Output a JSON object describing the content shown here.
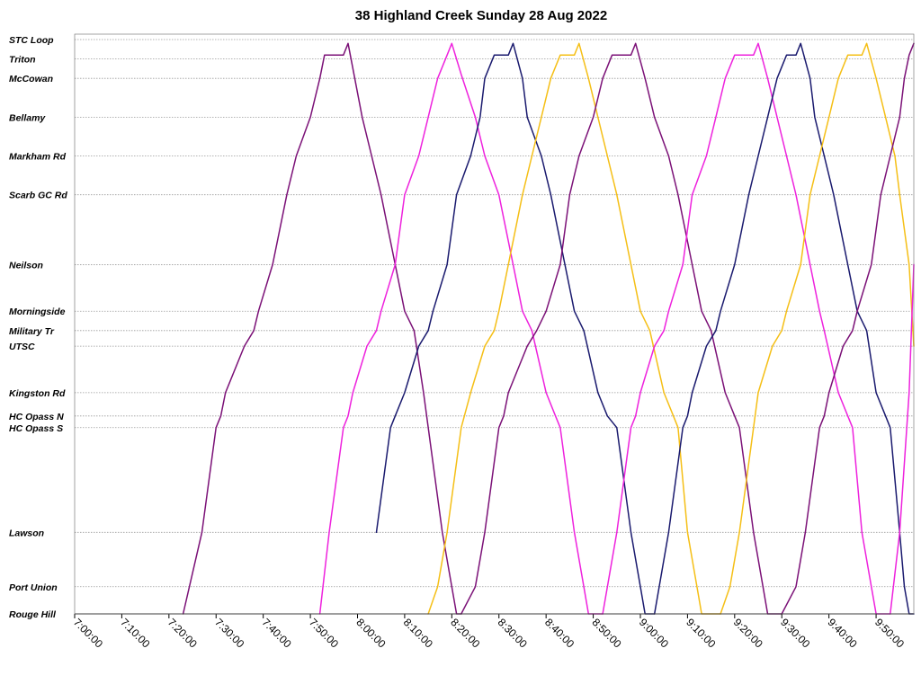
{
  "chart_data": {
    "type": "line",
    "title": "38 Highland Creek Sunday 28 Aug 2022",
    "xlabel": "",
    "ylabel": "",
    "x_axis": {
      "min": "7:00:00",
      "max": "9:58:00",
      "tick_labels": [
        "7:00:00",
        "7:10:00",
        "7:20:00",
        "7:30:00",
        "7:40:00",
        "7:50:00",
        "8:00:00",
        "8:10:00",
        "8:20:00",
        "8:30:00",
        "8:40:00",
        "8:50:00",
        "9:00:00",
        "9:10:00",
        "9:20:00",
        "9:30:00",
        "9:40:00",
        "9:50:00"
      ]
    },
    "stops": [
      {
        "name": "STC Loop",
        "position": 20.0
      },
      {
        "name": "Triton",
        "position": 19.5
      },
      {
        "name": "McCowan",
        "position": 19.0
      },
      {
        "name": "Bellamy",
        "position": 18.0
      },
      {
        "name": "Markham Rd",
        "position": 17.0
      },
      {
        "name": "Scarb GC Rd",
        "position": 16.0
      },
      {
        "name": "Neilson",
        "position": 14.2
      },
      {
        "name": "Morningside",
        "position": 13.0
      },
      {
        "name": "Military Tr",
        "position": 12.5
      },
      {
        "name": "UTSC",
        "position": 12.1
      },
      {
        "name": "Kingston Rd",
        "position": 10.9
      },
      {
        "name": "HC Opass N",
        "position": 10.3
      },
      {
        "name": "HC Opass S",
        "position": 10.0
      },
      {
        "name": "Lawson",
        "position": 7.3
      },
      {
        "name": "Port Union",
        "position": 5.9
      },
      {
        "name": "Rouge Hill",
        "position": 5.2
      }
    ],
    "grid": true,
    "legend": "none",
    "series": [
      {
        "color": "#7B1177",
        "points": [
          [
            "7:23:00",
            5.2
          ],
          [
            "7:27:00",
            7.3
          ],
          [
            "7:30:00",
            10.0
          ],
          [
            "7:31:00",
            10.3
          ],
          [
            "7:32:00",
            10.9
          ],
          [
            "7:36:00",
            12.1
          ],
          [
            "7:38:00",
            12.5
          ],
          [
            "7:39:00",
            13.0
          ],
          [
            "7:42:00",
            14.2
          ],
          [
            "7:45:00",
            16.0
          ],
          [
            "7:47:00",
            17.0
          ],
          [
            "7:50:00",
            18.0
          ],
          [
            "7:52:00",
            19.0
          ],
          [
            "7:53:00",
            19.6
          ],
          [
            "7:57:00",
            19.6
          ],
          [
            "7:58:00",
            19.9
          ],
          [
            "8:01:00",
            18.0
          ],
          [
            "8:03:00",
            17.0
          ],
          [
            "8:05:00",
            16.0
          ],
          [
            "8:08:00",
            14.2
          ],
          [
            "8:10:00",
            13.0
          ],
          [
            "8:12:00",
            12.5
          ],
          [
            "8:14:00",
            10.9
          ],
          [
            "8:18:00",
            7.3
          ],
          [
            "8:20:00",
            5.9
          ],
          [
            "8:21:00",
            5.2
          ],
          [
            "8:22:00",
            5.2
          ]
        ]
      },
      {
        "color": "#EE22DD",
        "points": [
          [
            "7:52:00",
            5.2
          ],
          [
            "7:54:00",
            7.3
          ],
          [
            "7:57:00",
            10.0
          ],
          [
            "7:58:00",
            10.3
          ],
          [
            "7:59:00",
            10.9
          ],
          [
            "8:02:00",
            12.1
          ],
          [
            "8:04:00",
            12.5
          ],
          [
            "8:05:00",
            13.0
          ],
          [
            "8:08:00",
            14.2
          ],
          [
            "8:10:00",
            16.0
          ],
          [
            "8:13:00",
            17.0
          ],
          [
            "8:15:00",
            18.0
          ],
          [
            "8:17:00",
            19.0
          ],
          [
            "8:19:00",
            19.6
          ],
          [
            "8:20:00",
            19.9
          ],
          [
            "8:22:00",
            19.1
          ],
          [
            "8:25:00",
            18.0
          ],
          [
            "8:27:00",
            17.0
          ],
          [
            "8:30:00",
            16.0
          ],
          [
            "8:33:00",
            14.2
          ],
          [
            "8:35:00",
            13.0
          ],
          [
            "8:37:00",
            12.5
          ],
          [
            "8:40:00",
            10.9
          ],
          [
            "8:42:00",
            10.3
          ],
          [
            "8:43:00",
            10.0
          ],
          [
            "8:46:00",
            7.3
          ],
          [
            "8:48:00",
            5.9
          ],
          [
            "8:49:00",
            5.2
          ],
          [
            "8:52:00",
            5.2
          ]
        ]
      },
      {
        "color": "#1A1A6E",
        "points": [
          [
            "8:04:00",
            7.3
          ],
          [
            "8:07:00",
            10.0
          ],
          [
            "8:08:00",
            10.3
          ],
          [
            "8:10:00",
            10.9
          ],
          [
            "8:13:00",
            12.1
          ],
          [
            "8:15:00",
            12.5
          ],
          [
            "8:16:00",
            13.0
          ],
          [
            "8:19:00",
            14.2
          ],
          [
            "8:21:00",
            16.0
          ],
          [
            "8:24:00",
            17.0
          ],
          [
            "8:26:00",
            18.0
          ],
          [
            "8:27:00",
            19.0
          ],
          [
            "8:29:00",
            19.6
          ],
          [
            "8:32:00",
            19.6
          ],
          [
            "8:33:00",
            19.9
          ],
          [
            "8:35:00",
            19.0
          ],
          [
            "8:36:00",
            18.0
          ],
          [
            "8:39:00",
            17.0
          ],
          [
            "8:41:00",
            16.0
          ],
          [
            "8:44:00",
            14.2
          ],
          [
            "8:46:00",
            13.0
          ],
          [
            "8:48:00",
            12.5
          ],
          [
            "8:51:00",
            10.9
          ],
          [
            "8:53:00",
            10.3
          ],
          [
            "8:55:00",
            10.0
          ],
          [
            "8:58:00",
            7.3
          ],
          [
            "9:00:00",
            5.9
          ],
          [
            "9:01:00",
            5.2
          ],
          [
            "9:03:00",
            5.2
          ]
        ]
      },
      {
        "color": "#F5BF16",
        "points": [
          [
            "8:15:00",
            5.2
          ],
          [
            "8:17:00",
            5.9
          ],
          [
            "8:19:00",
            7.3
          ],
          [
            "8:22:00",
            10.0
          ],
          [
            "8:24:00",
            10.9
          ],
          [
            "8:27:00",
            12.1
          ],
          [
            "8:29:00",
            12.5
          ],
          [
            "8:30:00",
            13.0
          ],
          [
            "8:32:00",
            14.2
          ],
          [
            "8:35:00",
            16.0
          ],
          [
            "8:37:00",
            17.0
          ],
          [
            "8:39:00",
            18.0
          ],
          [
            "8:41:00",
            19.0
          ],
          [
            "8:43:00",
            19.6
          ],
          [
            "8:46:00",
            19.6
          ],
          [
            "8:47:00",
            19.9
          ],
          [
            "8:49:00",
            19.0
          ],
          [
            "8:51:00",
            18.0
          ],
          [
            "8:53:00",
            17.0
          ],
          [
            "8:55:00",
            16.0
          ],
          [
            "8:58:00",
            14.2
          ],
          [
            "9:00:00",
            13.0
          ],
          [
            "9:02:00",
            12.5
          ],
          [
            "9:05:00",
            10.9
          ],
          [
            "9:07:00",
            10.3
          ],
          [
            "9:08:00",
            10.0
          ],
          [
            "9:10:00",
            7.3
          ],
          [
            "9:12:00",
            5.9
          ],
          [
            "9:13:00",
            5.2
          ],
          [
            "9:17:00",
            5.2
          ]
        ]
      },
      {
        "color": "#7B1177",
        "points": [
          [
            "8:22:00",
            5.2
          ],
          [
            "8:25:00",
            5.9
          ],
          [
            "8:27:00",
            7.3
          ],
          [
            "8:30:00",
            10.0
          ],
          [
            "8:31:00",
            10.3
          ],
          [
            "8:32:00",
            10.9
          ],
          [
            "8:36:00",
            12.1
          ],
          [
            "8:38:00",
            12.5
          ],
          [
            "8:40:00",
            13.0
          ],
          [
            "8:43:00",
            14.2
          ],
          [
            "8:45:00",
            16.0
          ],
          [
            "8:47:00",
            17.0
          ],
          [
            "8:50:00",
            18.0
          ],
          [
            "8:52:00",
            19.0
          ],
          [
            "8:54:00",
            19.6
          ],
          [
            "8:58:00",
            19.6
          ],
          [
            "8:59:00",
            19.9
          ],
          [
            "9:01:00",
            19.0
          ],
          [
            "9:03:00",
            18.0
          ],
          [
            "9:06:00",
            17.0
          ],
          [
            "9:08:00",
            16.0
          ],
          [
            "9:11:00",
            14.2
          ],
          [
            "9:13:00",
            13.0
          ],
          [
            "9:15:00",
            12.5
          ],
          [
            "9:18:00",
            10.9
          ],
          [
            "9:20:00",
            10.3
          ],
          [
            "9:21:00",
            10.0
          ],
          [
            "9:24:00",
            7.3
          ],
          [
            "9:26:00",
            5.9
          ],
          [
            "9:27:00",
            5.2
          ],
          [
            "9:30:00",
            5.2
          ]
        ]
      },
      {
        "color": "#EE22DD",
        "points": [
          [
            "8:52:00",
            5.2
          ],
          [
            "8:55:00",
            7.3
          ],
          [
            "8:58:00",
            10.0
          ],
          [
            "8:59:00",
            10.3
          ],
          [
            "9:00:00",
            10.9
          ],
          [
            "9:03:00",
            12.1
          ],
          [
            "9:05:00",
            12.5
          ],
          [
            "9:06:00",
            13.0
          ],
          [
            "9:09:00",
            14.2
          ],
          [
            "9:11:00",
            16.0
          ],
          [
            "9:14:00",
            17.0
          ],
          [
            "9:16:00",
            18.0
          ],
          [
            "9:18:00",
            19.0
          ],
          [
            "9:20:00",
            19.6
          ],
          [
            "9:24:00",
            19.6
          ],
          [
            "9:25:00",
            19.9
          ],
          [
            "9:27:00",
            19.0
          ],
          [
            "9:29:00",
            18.0
          ],
          [
            "9:31:00",
            17.0
          ],
          [
            "9:33:00",
            16.0
          ],
          [
            "9:36:00",
            14.2
          ],
          [
            "9:38:00",
            13.0
          ],
          [
            "9:39:00",
            12.5
          ],
          [
            "9:42:00",
            10.9
          ],
          [
            "9:44:00",
            10.3
          ],
          [
            "9:45:00",
            10.0
          ],
          [
            "9:47:00",
            7.3
          ],
          [
            "9:49:00",
            5.9
          ],
          [
            "9:50:00",
            5.2
          ],
          [
            "9:53:00",
            5.2
          ]
        ]
      },
      {
        "color": "#1A1A6E",
        "points": [
          [
            "9:03:00",
            5.2
          ],
          [
            "9:06:00",
            7.3
          ],
          [
            "9:09:00",
            10.0
          ],
          [
            "9:10:00",
            10.3
          ],
          [
            "9:11:00",
            10.9
          ],
          [
            "9:14:00",
            12.1
          ],
          [
            "9:16:00",
            12.5
          ],
          [
            "9:17:00",
            13.0
          ],
          [
            "9:20:00",
            14.2
          ],
          [
            "9:23:00",
            16.0
          ],
          [
            "9:25:00",
            17.0
          ],
          [
            "9:27:00",
            18.0
          ],
          [
            "9:29:00",
            19.0
          ],
          [
            "9:31:00",
            19.6
          ],
          [
            "9:33:00",
            19.6
          ],
          [
            "9:34:00",
            19.9
          ],
          [
            "9:36:00",
            19.0
          ],
          [
            "9:37:00",
            18.0
          ],
          [
            "9:39:00",
            17.0
          ],
          [
            "9:41:00",
            16.0
          ],
          [
            "9:44:00",
            14.2
          ],
          [
            "9:46:00",
            13.0
          ],
          [
            "9:48:00",
            12.5
          ],
          [
            "9:50:00",
            10.9
          ],
          [
            "9:52:00",
            10.3
          ],
          [
            "9:53:00",
            10.0
          ],
          [
            "9:55:00",
            7.3
          ],
          [
            "9:56:00",
            5.9
          ],
          [
            "9:57:00",
            5.2
          ],
          [
            "9:58:00",
            5.2
          ]
        ]
      },
      {
        "color": "#F5BF16",
        "points": [
          [
            "9:17:00",
            5.2
          ],
          [
            "9:19:00",
            5.9
          ],
          [
            "9:21:00",
            7.3
          ],
          [
            "9:24:00",
            10.0
          ],
          [
            "9:25:00",
            10.9
          ],
          [
            "9:28:00",
            12.1
          ],
          [
            "9:30:00",
            12.5
          ],
          [
            "9:31:00",
            13.0
          ],
          [
            "9:34:00",
            14.2
          ],
          [
            "9:36:00",
            16.0
          ],
          [
            "9:38:00",
            17.0
          ],
          [
            "9:40:00",
            18.0
          ],
          [
            "9:42:00",
            19.0
          ],
          [
            "9:44:00",
            19.6
          ],
          [
            "9:47:00",
            19.6
          ],
          [
            "9:48:00",
            19.9
          ],
          [
            "9:50:00",
            19.0
          ],
          [
            "9:52:00",
            18.0
          ],
          [
            "9:54:00",
            17.0
          ],
          [
            "9:55:00",
            16.0
          ],
          [
            "9:57:00",
            14.2
          ],
          [
            "9:58:00",
            12.1
          ]
        ]
      },
      {
        "color": "#7B1177",
        "points": [
          [
            "9:30:00",
            5.2
          ],
          [
            "9:33:00",
            5.9
          ],
          [
            "9:35:00",
            7.3
          ],
          [
            "9:38:00",
            10.0
          ],
          [
            "9:39:00",
            10.3
          ],
          [
            "9:40:00",
            10.9
          ],
          [
            "9:43:00",
            12.1
          ],
          [
            "9:45:00",
            12.5
          ],
          [
            "9:46:00",
            13.0
          ],
          [
            "9:49:00",
            14.2
          ],
          [
            "9:51:00",
            16.0
          ],
          [
            "9:53:00",
            17.0
          ],
          [
            "9:55:00",
            18.0
          ],
          [
            "9:56:00",
            19.0
          ],
          [
            "9:57:00",
            19.6
          ],
          [
            "9:58:00",
            19.9
          ]
        ]
      },
      {
        "color": "#EE22DD",
        "points": [
          [
            "9:53:00",
            5.2
          ],
          [
            "9:55:00",
            7.3
          ],
          [
            "9:57:00",
            10.9
          ],
          [
            "9:58:00",
            14.2
          ]
        ]
      }
    ]
  }
}
